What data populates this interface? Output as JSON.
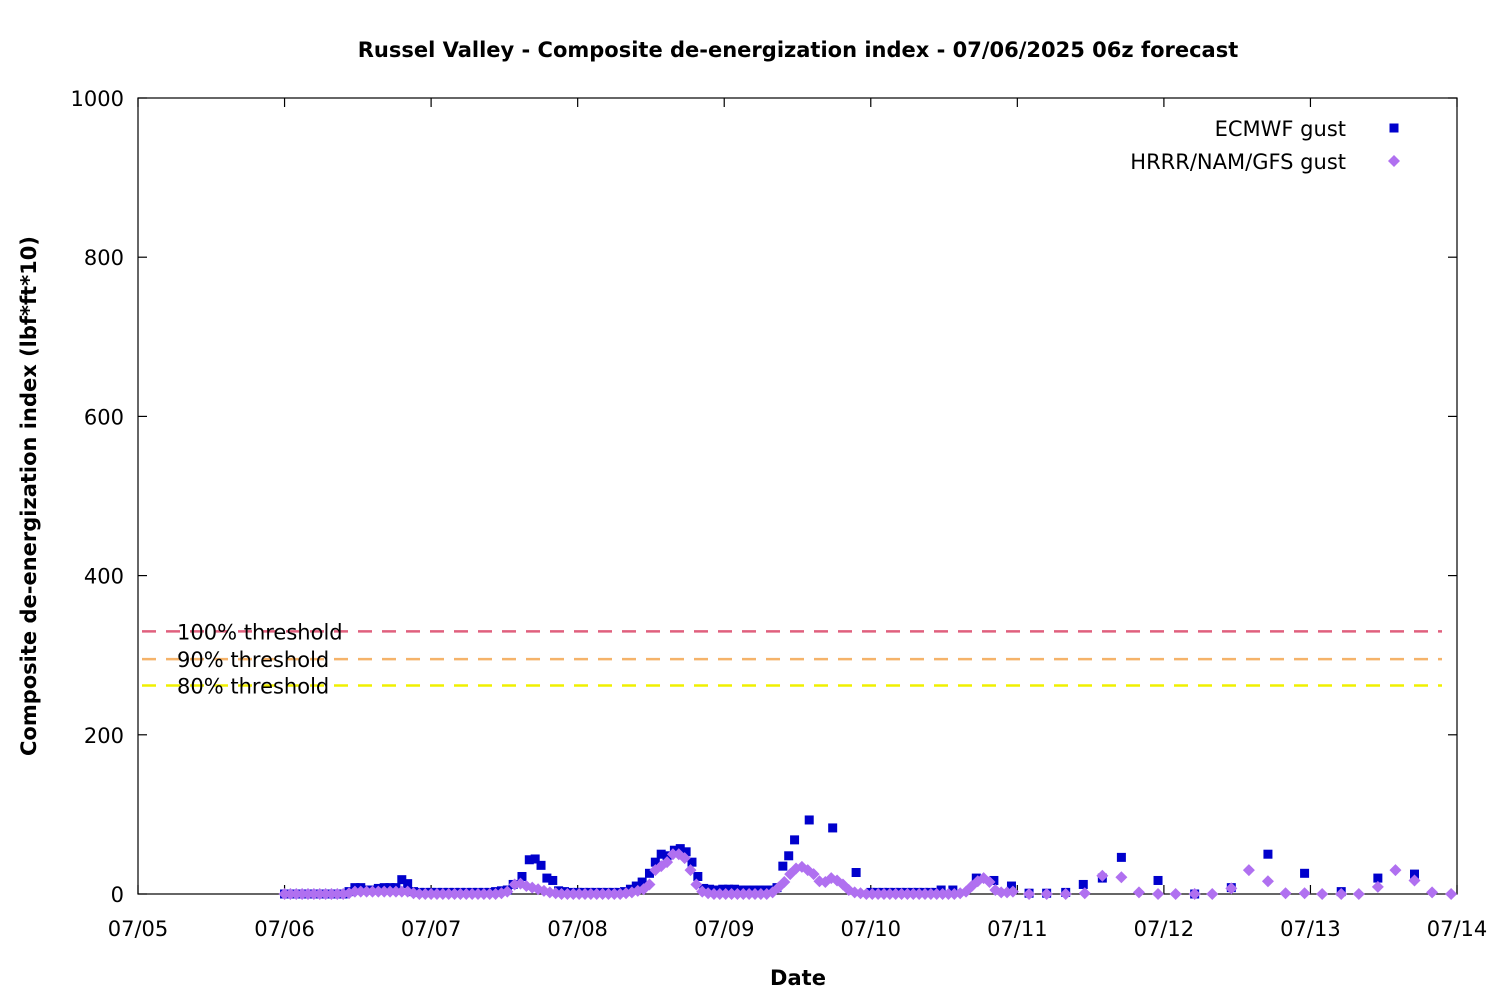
{
  "chart_data": {
    "type": "scatter",
    "title": "Russel Valley - Composite de-energization index - 07/06/2025 06z forecast",
    "xlabel": "Date",
    "ylabel": "Composite de-energization index (lbf*ft*10)",
    "x_tick_labels": [
      "07/05",
      "07/06",
      "07/07",
      "07/08",
      "07/09",
      "07/10",
      "07/11",
      "07/12",
      "07/13",
      "07/14"
    ],
    "y_ticks": [
      0,
      200,
      400,
      600,
      800,
      1000
    ],
    "xlim_days": [
      0,
      9
    ],
    "ylim": [
      0,
      1000
    ],
    "legend_position": "top-right",
    "thresholds": [
      {
        "label": "100% threshold",
        "value": 330,
        "color": "#e0607e"
      },
      {
        "label": "90% threshold",
        "value": 295,
        "color": "#f5b36a"
      },
      {
        "label": "80% threshold",
        "value": 262,
        "color": "#f0f000"
      }
    ],
    "series": [
      {
        "name": "ECMWF gust",
        "marker": "square",
        "color": "#0000cc",
        "points": [
          [
            1.0,
            0
          ],
          [
            1.04,
            0
          ],
          [
            1.08,
            0
          ],
          [
            1.12,
            0
          ],
          [
            1.16,
            0
          ],
          [
            1.2,
            0
          ],
          [
            1.24,
            0
          ],
          [
            1.28,
            0
          ],
          [
            1.32,
            0
          ],
          [
            1.36,
            0
          ],
          [
            1.4,
            0
          ],
          [
            1.44,
            3
          ],
          [
            1.48,
            8
          ],
          [
            1.52,
            8
          ],
          [
            1.56,
            5
          ],
          [
            1.6,
            5
          ],
          [
            1.64,
            7
          ],
          [
            1.68,
            8
          ],
          [
            1.72,
            8
          ],
          [
            1.76,
            8
          ],
          [
            1.8,
            18
          ],
          [
            1.84,
            13
          ],
          [
            1.88,
            3
          ],
          [
            1.92,
            2
          ],
          [
            1.96,
            2
          ],
          [
            2.0,
            2
          ],
          [
            2.04,
            2
          ],
          [
            2.08,
            2
          ],
          [
            2.12,
            2
          ],
          [
            2.16,
            2
          ],
          [
            2.2,
            2
          ],
          [
            2.24,
            2
          ],
          [
            2.28,
            2
          ],
          [
            2.32,
            2
          ],
          [
            2.36,
            2
          ],
          [
            2.4,
            2
          ],
          [
            2.44,
            3
          ],
          [
            2.48,
            4
          ],
          [
            2.52,
            5
          ],
          [
            2.56,
            12
          ],
          [
            2.62,
            22
          ],
          [
            2.67,
            43
          ],
          [
            2.71,
            44
          ],
          [
            2.75,
            36
          ],
          [
            2.79,
            20
          ],
          [
            2.83,
            17
          ],
          [
            2.87,
            4
          ],
          [
            2.91,
            3
          ],
          [
            2.95,
            2
          ],
          [
            3.0,
            2
          ],
          [
            3.04,
            2
          ],
          [
            3.08,
            2
          ],
          [
            3.12,
            2
          ],
          [
            3.16,
            2
          ],
          [
            3.2,
            2
          ],
          [
            3.24,
            2
          ],
          [
            3.28,
            2
          ],
          [
            3.32,
            3
          ],
          [
            3.36,
            6
          ],
          [
            3.4,
            10
          ],
          [
            3.44,
            15
          ],
          [
            3.49,
            26
          ],
          [
            3.53,
            40
          ],
          [
            3.57,
            50
          ],
          [
            3.61,
            48
          ],
          [
            3.66,
            55
          ],
          [
            3.7,
            57
          ],
          [
            3.74,
            53
          ],
          [
            3.78,
            40
          ],
          [
            3.82,
            22
          ],
          [
            3.86,
            7
          ],
          [
            3.9,
            6
          ],
          [
            3.95,
            5
          ],
          [
            3.99,
            6
          ],
          [
            4.03,
            6
          ],
          [
            4.07,
            6
          ],
          [
            4.11,
            5
          ],
          [
            4.15,
            5
          ],
          [
            4.2,
            5
          ],
          [
            4.24,
            5
          ],
          [
            4.28,
            5
          ],
          [
            4.32,
            5
          ],
          [
            4.36,
            8
          ],
          [
            4.4,
            35
          ],
          [
            4.44,
            48
          ],
          [
            4.48,
            68
          ],
          [
            4.58,
            93
          ],
          [
            4.74,
            83
          ],
          [
            4.9,
            27
          ],
          [
            5.0,
            2
          ],
          [
            5.04,
            2
          ],
          [
            5.08,
            2
          ],
          [
            5.12,
            2
          ],
          [
            5.16,
            2
          ],
          [
            5.2,
            2
          ],
          [
            5.24,
            2
          ],
          [
            5.28,
            2
          ],
          [
            5.32,
            2
          ],
          [
            5.36,
            2
          ],
          [
            5.4,
            2
          ],
          [
            5.44,
            2
          ],
          [
            5.48,
            5
          ],
          [
            5.56,
            5
          ],
          [
            5.72,
            20
          ],
          [
            5.84,
            17
          ],
          [
            5.96,
            10
          ],
          [
            6.08,
            1
          ],
          [
            6.2,
            1
          ],
          [
            6.33,
            2
          ],
          [
            6.45,
            12
          ],
          [
            6.58,
            20
          ],
          [
            6.71,
            46
          ],
          [
            6.96,
            17
          ],
          [
            7.21,
            0
          ],
          [
            7.46,
            8
          ],
          [
            7.71,
            50
          ],
          [
            7.96,
            26
          ],
          [
            8.21,
            3
          ],
          [
            8.46,
            20
          ],
          [
            8.71,
            25
          ]
        ]
      },
      {
        "name": "HRRR/NAM/GFS gust",
        "marker": "diamond",
        "color": "#b070f0",
        "points": [
          [
            1.0,
            0
          ],
          [
            1.04,
            0
          ],
          [
            1.08,
            0
          ],
          [
            1.12,
            0
          ],
          [
            1.16,
            0
          ],
          [
            1.2,
            0
          ],
          [
            1.24,
            0
          ],
          [
            1.28,
            0
          ],
          [
            1.32,
            0
          ],
          [
            1.36,
            0
          ],
          [
            1.4,
            0
          ],
          [
            1.44,
            1
          ],
          [
            1.48,
            3
          ],
          [
            1.52,
            3
          ],
          [
            1.56,
            3
          ],
          [
            1.6,
            3
          ],
          [
            1.64,
            3
          ],
          [
            1.68,
            3
          ],
          [
            1.72,
            3
          ],
          [
            1.76,
            3
          ],
          [
            1.8,
            3
          ],
          [
            1.84,
            3
          ],
          [
            1.88,
            1
          ],
          [
            1.92,
            0
          ],
          [
            1.96,
            0
          ],
          [
            2.0,
            0
          ],
          [
            2.04,
            0
          ],
          [
            2.08,
            0
          ],
          [
            2.12,
            0
          ],
          [
            2.16,
            0
          ],
          [
            2.2,
            0
          ],
          [
            2.24,
            0
          ],
          [
            2.28,
            0
          ],
          [
            2.32,
            0
          ],
          [
            2.36,
            0
          ],
          [
            2.4,
            0
          ],
          [
            2.44,
            0
          ],
          [
            2.48,
            1
          ],
          [
            2.52,
            3
          ],
          [
            2.57,
            12
          ],
          [
            2.61,
            13
          ],
          [
            2.65,
            10
          ],
          [
            2.69,
            8
          ],
          [
            2.73,
            6
          ],
          [
            2.77,
            4
          ],
          [
            2.81,
            2
          ],
          [
            2.85,
            1
          ],
          [
            2.89,
            0
          ],
          [
            2.93,
            0
          ],
          [
            2.97,
            0
          ],
          [
            3.01,
            0
          ],
          [
            3.05,
            0
          ],
          [
            3.09,
            0
          ],
          [
            3.13,
            0
          ],
          [
            3.17,
            0
          ],
          [
            3.21,
            0
          ],
          [
            3.25,
            0
          ],
          [
            3.29,
            0
          ],
          [
            3.33,
            1
          ],
          [
            3.37,
            2
          ],
          [
            3.41,
            4
          ],
          [
            3.45,
            6
          ],
          [
            3.49,
            12
          ],
          [
            3.53,
            30
          ],
          [
            3.57,
            35
          ],
          [
            3.61,
            40
          ],
          [
            3.65,
            50
          ],
          [
            3.69,
            50
          ],
          [
            3.73,
            45
          ],
          [
            3.77,
            30
          ],
          [
            3.81,
            12
          ],
          [
            3.85,
            3
          ],
          [
            3.89,
            1
          ],
          [
            3.93,
            0
          ],
          [
            3.97,
            0
          ],
          [
            4.01,
            0
          ],
          [
            4.05,
            0
          ],
          [
            4.09,
            0
          ],
          [
            4.13,
            0
          ],
          [
            4.17,
            0
          ],
          [
            4.21,
            0
          ],
          [
            4.25,
            0
          ],
          [
            4.29,
            0
          ],
          [
            4.33,
            2
          ],
          [
            4.37,
            8
          ],
          [
            4.41,
            15
          ],
          [
            4.45,
            25
          ],
          [
            4.49,
            32
          ],
          [
            4.53,
            34
          ],
          [
            4.57,
            30
          ],
          [
            4.61,
            25
          ],
          [
            4.65,
            16
          ],
          [
            4.69,
            15
          ],
          [
            4.73,
            20
          ],
          [
            4.77,
            17
          ],
          [
            4.81,
            12
          ],
          [
            4.85,
            5
          ],
          [
            4.89,
            2
          ],
          [
            4.93,
            1
          ],
          [
            4.97,
            0
          ],
          [
            5.01,
            0
          ],
          [
            5.05,
            0
          ],
          [
            5.09,
            0
          ],
          [
            5.13,
            0
          ],
          [
            5.17,
            0
          ],
          [
            5.21,
            0
          ],
          [
            5.25,
            0
          ],
          [
            5.29,
            0
          ],
          [
            5.33,
            0
          ],
          [
            5.37,
            0
          ],
          [
            5.41,
            0
          ],
          [
            5.45,
            0
          ],
          [
            5.49,
            0
          ],
          [
            5.53,
            0
          ],
          [
            5.57,
            0
          ],
          [
            5.61,
            1
          ],
          [
            5.65,
            3
          ],
          [
            5.69,
            10
          ],
          [
            5.73,
            16
          ],
          [
            5.77,
            20
          ],
          [
            5.81,
            15
          ],
          [
            5.85,
            5
          ],
          [
            5.89,
            2
          ],
          [
            5.93,
            2
          ],
          [
            5.97,
            3
          ],
          [
            6.08,
            0
          ],
          [
            6.2,
            0
          ],
          [
            6.33,
            0
          ],
          [
            6.46,
            1
          ],
          [
            6.58,
            23
          ],
          [
            6.71,
            21
          ],
          [
            6.83,
            2
          ],
          [
            6.96,
            0
          ],
          [
            7.08,
            0
          ],
          [
            7.21,
            0
          ],
          [
            7.33,
            0
          ],
          [
            7.46,
            7
          ],
          [
            7.58,
            30
          ],
          [
            7.71,
            16
          ],
          [
            7.83,
            1
          ],
          [
            7.96,
            1
          ],
          [
            8.08,
            0
          ],
          [
            8.21,
            0
          ],
          [
            8.33,
            0
          ],
          [
            8.46,
            9
          ],
          [
            8.58,
            30
          ],
          [
            8.71,
            17
          ],
          [
            8.83,
            2
          ],
          [
            8.96,
            0
          ]
        ]
      }
    ]
  }
}
